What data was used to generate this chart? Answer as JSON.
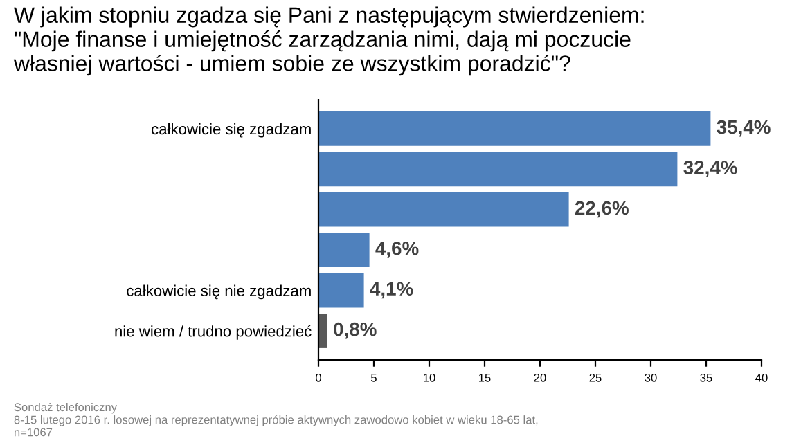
{
  "chart_data": {
    "type": "bar",
    "orientation": "horizontal",
    "title": "W jakim stopniu zgadza się Pani z następującym stwierdzeniem:\n\"Moje finanse i umiejętność zarządzania nimi, dają mi poczucie\nwłasniej wartości - umiem sobie ze wszystkim poradzić\"?",
    "categories": [
      "całkowicie się zgadzam",
      null,
      null,
      null,
      "całkowicie się nie zgadzam",
      "nie wiem / trudno powiedzieć"
    ],
    "values": [
      35.4,
      32.4,
      22.6,
      4.6,
      4.1,
      0.8
    ],
    "value_labels": [
      "35,4%",
      "32,4%",
      "22,6%",
      "4,6%",
      "4,1%",
      "0,8%"
    ],
    "colors": [
      "#4f81bd",
      "#4f81bd",
      "#4f81bd",
      "#4f81bd",
      "#4f81bd",
      "#595959"
    ],
    "xlim": [
      0,
      40
    ],
    "xticks": [
      0,
      5,
      10,
      15,
      20,
      25,
      30,
      35,
      40
    ],
    "grid": false,
    "legend": false,
    "annotations": [
      "Sondaż telefoniczny\n8-15 lutego 2016 r. losowej na reprezentatywnej próbie aktywnych zawodowo kobiet w wieku 18-65 lat,\nn=1067"
    ]
  }
}
